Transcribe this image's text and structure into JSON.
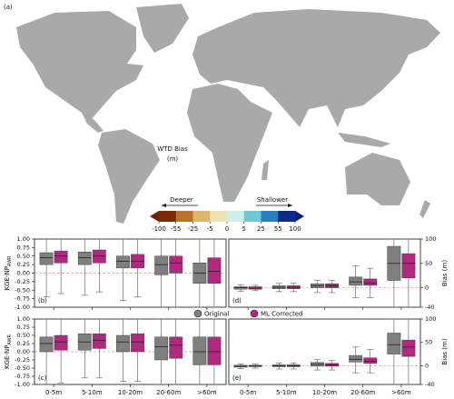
{
  "chart_data": [
    {
      "type": "map",
      "panel_label": "(a)",
      "title": "WTD Bias",
      "subtitle": "(m)",
      "left_label": "Deeper",
      "right_label": "Shallower",
      "colorbar": {
        "ticks": [
          -100,
          -55,
          -25,
          -5,
          0,
          5,
          25,
          55,
          100
        ],
        "colors": [
          "#7a2a06",
          "#b8741f",
          "#dcb86a",
          "#eee4b0",
          "#cfeee9",
          "#6fc7d6",
          "#2a7fc0",
          "#0d2a8a"
        ]
      }
    },
    {
      "type": "box",
      "categories": [
        "0-5m",
        "5-10m",
        "10-20m",
        "20-60m",
        ">60m"
      ],
      "series": [
        {
          "name": "Original",
          "color": "#7f7f7f"
        },
        {
          "name": "ML Corrected",
          "color": "#b0287f"
        }
      ],
      "panels": [
        {
          "label": "(b)",
          "ylabel": "KGE-NP",
          "ylabel_sub": "AWR",
          "side": "left",
          "ylim": [
            -1,
            1
          ],
          "yticks": [
            {
              "value": -1,
              "label": "-1.00"
            },
            {
              "value": -0.75,
              "label": "-0.75"
            },
            {
              "value": -0.5,
              "label": "-0.50"
            },
            {
              "value": -0.25,
              "label": "-0.25"
            },
            {
              "value": 0,
              "label": "0.00"
            },
            {
              "value": 0.25,
              "label": "0.25"
            },
            {
              "value": 0.5,
              "label": "0.50"
            },
            {
              "value": 0.75,
              "label": "0.75"
            },
            {
              "value": 1,
              "label": "1.00"
            }
          ],
          "values": [
            [
              [
                -0.7,
                0.25,
                0.45,
                0.6,
                1
              ],
              [
                -0.65,
                0.25,
                0.45,
                0.62,
                1
              ],
              [
                -0.8,
                0.15,
                0.35,
                0.5,
                1
              ],
              [
                -1,
                -0.05,
                0.25,
                0.5,
                1
              ],
              [
                -1,
                -0.3,
                0,
                0.3,
                1
              ]
            ],
            [
              [
                -0.6,
                0.3,
                0.5,
                0.65,
                1
              ],
              [
                -0.55,
                0.3,
                0.5,
                0.68,
                1
              ],
              [
                -0.7,
                0.15,
                0.35,
                0.55,
                1
              ],
              [
                -1,
                0,
                0.3,
                0.5,
                1
              ],
              [
                -1,
                -0.3,
                0.05,
                0.45,
                1
              ]
            ]
          ]
        },
        {
          "label": "(d)",
          "ylabel": "Bias (m)",
          "side": "right",
          "ylim": [
            -40,
            100
          ],
          "yticks": [
            -40,
            0,
            50,
            100
          ],
          "values": [
            [
              [
                -7,
                -3,
                0,
                2,
                6
              ],
              [
                -8,
                -2,
                1,
                4,
                9
              ],
              [
                -10,
                0,
                4,
                8,
                15
              ],
              [
                -20,
                5,
                12,
                22,
                45
              ],
              [
                -40,
                15,
                50,
                85,
                100
              ]
            ],
            [
              [
                -6,
                -3,
                -1,
                2,
                5
              ],
              [
                -8,
                -2,
                1,
                4,
                9
              ],
              [
                -10,
                0,
                4,
                8,
                15
              ],
              [
                -20,
                5,
                10,
                18,
                40
              ],
              [
                -40,
                20,
                50,
                70,
                100
              ]
            ]
          ]
        },
        {
          "label": "(c)",
          "ylabel": "KGE-NP",
          "ylabel_sub": "AWR",
          "side": "left",
          "ylim": [
            -1,
            1
          ],
          "yticks": [
            {
              "value": -1,
              "label": "-1.00"
            },
            {
              "value": -0.75,
              "label": "-0.75"
            },
            {
              "value": -0.5,
              "label": "-0.50"
            },
            {
              "value": -0.25,
              "label": "-0.25"
            },
            {
              "value": 0,
              "label": "0.00"
            },
            {
              "value": 0.25,
              "label": "0.25"
            },
            {
              "value": 0.5,
              "label": "0.50"
            },
            {
              "value": 0.75,
              "label": "0.75"
            },
            {
              "value": 1,
              "label": "1.00"
            }
          ],
          "values": [
            [
              [
                -1,
                0,
                0.25,
                0.45,
                1
              ],
              [
                -0.8,
                0.05,
                0.3,
                0.55,
                1
              ],
              [
                -0.9,
                0,
                0.3,
                0.5,
                1
              ],
              [
                -1,
                -0.25,
                0.15,
                0.45,
                1
              ],
              [
                -1,
                -0.4,
                0,
                0.45,
                1
              ]
            ],
            [
              [
                -0.95,
                0.05,
                0.3,
                0.5,
                1
              ],
              [
                -0.8,
                0.1,
                0.35,
                0.55,
                1
              ],
              [
                -0.9,
                0,
                0.3,
                0.55,
                1
              ],
              [
                -1,
                -0.2,
                0.2,
                0.45,
                1
              ],
              [
                -1,
                -0.4,
                0,
                0.45,
                1
              ]
            ]
          ]
        },
        {
          "label": "(e)",
          "ylabel": "Bias (m)",
          "side": "right",
          "ylim": [
            -40,
            100
          ],
          "yticks": [
            -40,
            0,
            50,
            100
          ],
          "values": [
            [
              [
                -6,
                -3,
                -1,
                1,
                4
              ],
              [
                -7,
                -2,
                0,
                2,
                6
              ],
              [
                -9,
                -1,
                3,
                7,
                13
              ],
              [
                -15,
                8,
                14,
                22,
                40
              ],
              [
                -40,
                25,
                45,
                70,
                100
              ]
            ],
            [
              [
                -5,
                -2,
                0,
                1,
                4
              ],
              [
                -7,
                -2,
                0,
                2,
                6
              ],
              [
                -9,
                -1,
                2,
                5,
                11
              ],
              [
                -15,
                5,
                10,
                17,
                35
              ],
              [
                -40,
                20,
                40,
                55,
                100
              ]
            ]
          ]
        }
      ]
    }
  ]
}
